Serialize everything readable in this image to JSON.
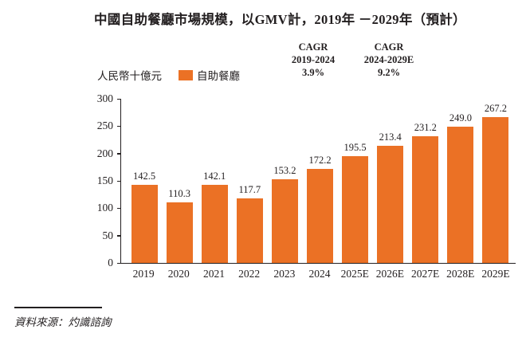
{
  "title": "中國自助餐廳市場規模，以GMV計，2019年 －2029年（預計）",
  "cagr_blocks": [
    {
      "label": "CAGR",
      "period": "2019-2024",
      "value": "3.9%"
    },
    {
      "label": "CAGR",
      "period": "2024-2029E",
      "value": "9.2%"
    }
  ],
  "unit_label": "人民幣十億元",
  "legend": {
    "label": "自助餐廳",
    "color": "#eb7125"
  },
  "source": "資料來源：灼識諮詢",
  "colors": {
    "bar": "#eb7125",
    "text": "#231f20",
    "axis": "#231f20"
  },
  "chart_data": {
    "type": "bar",
    "title": "中國自助餐廳市場規模，以GMV計，2019年 －2029年（預計）",
    "categories": [
      "2019",
      "2020",
      "2021",
      "2022",
      "2023",
      "2024",
      "2025E",
      "2026E",
      "2027E",
      "2028E",
      "2029E"
    ],
    "values": [
      142.5,
      110.3,
      142.1,
      117.7,
      153.2,
      172.2,
      195.5,
      213.4,
      231.2,
      249.0,
      267.2
    ],
    "xlabel": "",
    "ylabel": "人民幣十億元",
    "ylim": [
      0,
      300
    ],
    "yticks": [
      0,
      50,
      100,
      150,
      200,
      250,
      300
    ],
    "value_decimals": 1,
    "grid": false,
    "legend_position": "top-left",
    "series_name": "自助餐廳",
    "bar_color": "#eb7125"
  }
}
